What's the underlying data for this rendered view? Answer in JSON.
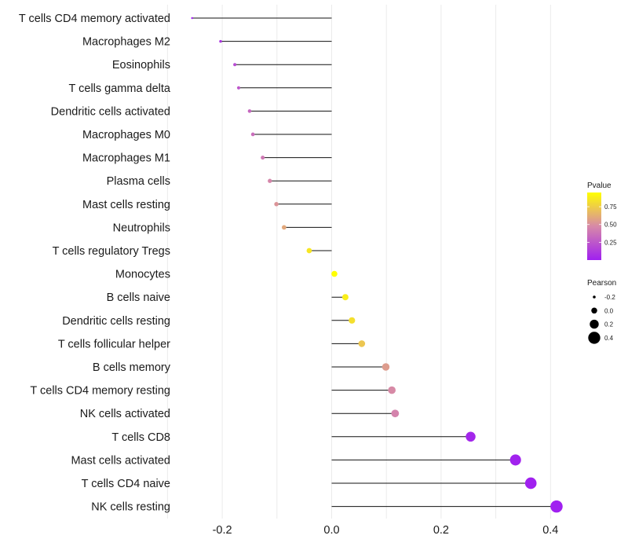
{
  "chart_data": {
    "type": "lollipop",
    "xlabel": "",
    "ylabel": "",
    "xlim": [
      -0.29,
      0.54
    ],
    "xticks": [
      -0.2,
      0.0,
      0.2,
      0.4
    ],
    "xtick_labels": [
      "-0.2",
      "0.0",
      "0.2",
      "0.4"
    ],
    "grid": true,
    "baseline": 0,
    "categories": [
      "T cells CD4 memory activated",
      "Macrophages M2",
      "Eosinophils",
      "T cells gamma delta",
      "Dendritic cells activated",
      "Macrophages M0",
      "Macrophages M1",
      "Plasma cells",
      "Mast cells resting",
      "Neutrophils",
      "T cells regulatory  Tregs ",
      "Monocytes",
      "B cells naive",
      "Dendritic cells resting",
      "T cells follicular helper",
      "B cells memory",
      "T cells CD4 memory resting",
      "NK cells activated",
      "T cells CD8",
      "Mast cells activated",
      "T cells CD4 naive",
      "NK cells resting"
    ],
    "pearson": [
      -0.255,
      -0.203,
      -0.177,
      -0.17,
      -0.15,
      -0.144,
      -0.126,
      -0.113,
      -0.101,
      -0.087,
      -0.041,
      0.005,
      0.025,
      0.037,
      0.055,
      0.099,
      0.11,
      0.116,
      0.254,
      0.336,
      0.364,
      0.411
    ],
    "pvalue": [
      0.02,
      0.1,
      0.2,
      0.25,
      0.32,
      0.35,
      0.4,
      0.46,
      0.52,
      0.6,
      0.85,
      0.99,
      0.88,
      0.82,
      0.72,
      0.55,
      0.48,
      0.45,
      0.03,
      0.01,
      0.004,
      0.001
    ],
    "color_legend": {
      "title": "Pvalue",
      "ticks": [
        0.25,
        0.5,
        0.75
      ],
      "labels": [
        "0.25",
        "0.50",
        "0.75"
      ],
      "range": [
        0.0,
        0.95
      ],
      "low_color": "#a020f0",
      "mid_color": "#d789a8",
      "high_color": "#ffff00"
    },
    "size_legend": {
      "title": "Pearson",
      "values": [
        -0.2,
        0.0,
        0.2,
        0.4
      ],
      "labels": [
        "-0.2",
        "0.0",
        "0.2",
        "0.4"
      ]
    }
  }
}
